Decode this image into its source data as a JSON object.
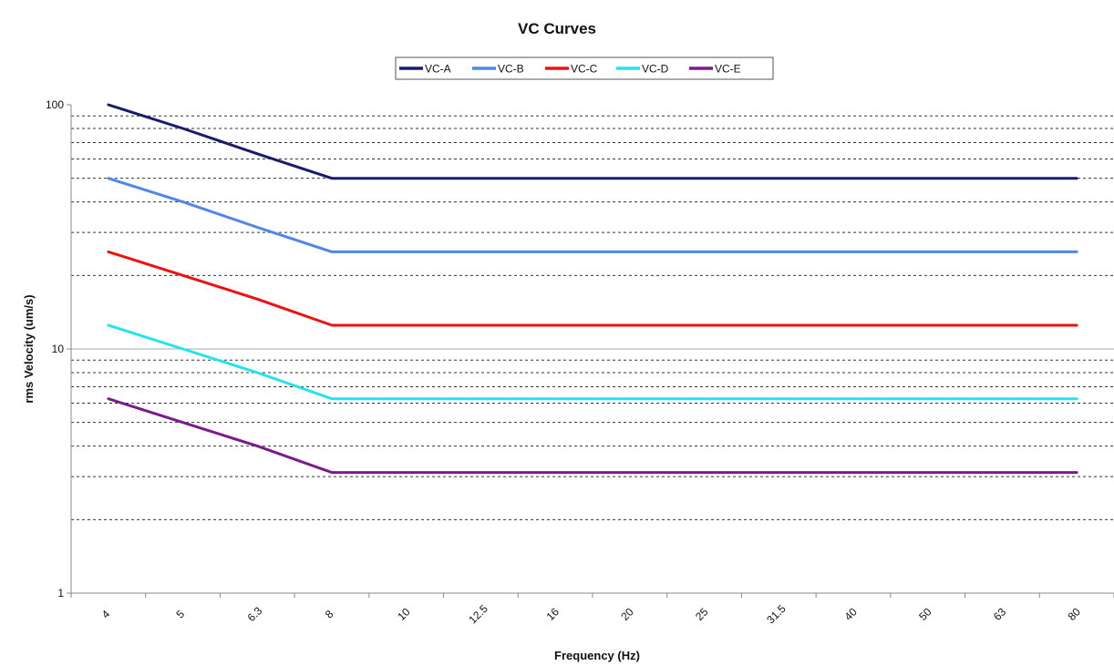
{
  "chart_data": {
    "type": "line",
    "title": "VC Curves",
    "xlabel": "Frequency (Hz)",
    "ylabel": "rms Velocity (um/s)",
    "y_scale": "log",
    "ylim": [
      1,
      100
    ],
    "y_ticks": [
      "1",
      "10",
      "100"
    ],
    "grid": "dotted horizontal lines at minor log steps",
    "legend_position": "top-center",
    "categories": [
      "4",
      "5",
      "6.3",
      "8",
      "10",
      "12.5",
      "16",
      "20",
      "25",
      "31.5",
      "40",
      "50",
      "63",
      "80"
    ],
    "series": [
      {
        "name": "VC-A",
        "color": "#1a1a6e",
        "values": [
          100,
          80,
          63,
          50,
          50,
          50,
          50,
          50,
          50,
          50,
          50,
          50,
          50,
          50
        ]
      },
      {
        "name": "VC-B",
        "color": "#4f86e8",
        "values": [
          50,
          40,
          31.5,
          25,
          25,
          25,
          25,
          25,
          25,
          25,
          25,
          25,
          25,
          25
        ]
      },
      {
        "name": "VC-C",
        "color": "#ee1111",
        "values": [
          25,
          20,
          16,
          12.5,
          12.5,
          12.5,
          12.5,
          12.5,
          12.5,
          12.5,
          12.5,
          12.5,
          12.5,
          12.5
        ]
      },
      {
        "name": "VC-D",
        "color": "#22e3ee",
        "values": [
          12.5,
          10,
          8,
          6.25,
          6.25,
          6.25,
          6.25,
          6.25,
          6.25,
          6.25,
          6.25,
          6.25,
          6.25,
          6.25
        ]
      },
      {
        "name": "VC-E",
        "color": "#7a1a8c",
        "values": [
          6.25,
          5,
          4,
          3.12,
          3.12,
          3.12,
          3.12,
          3.12,
          3.12,
          3.12,
          3.12,
          3.12,
          3.12,
          3.12
        ]
      }
    ]
  }
}
